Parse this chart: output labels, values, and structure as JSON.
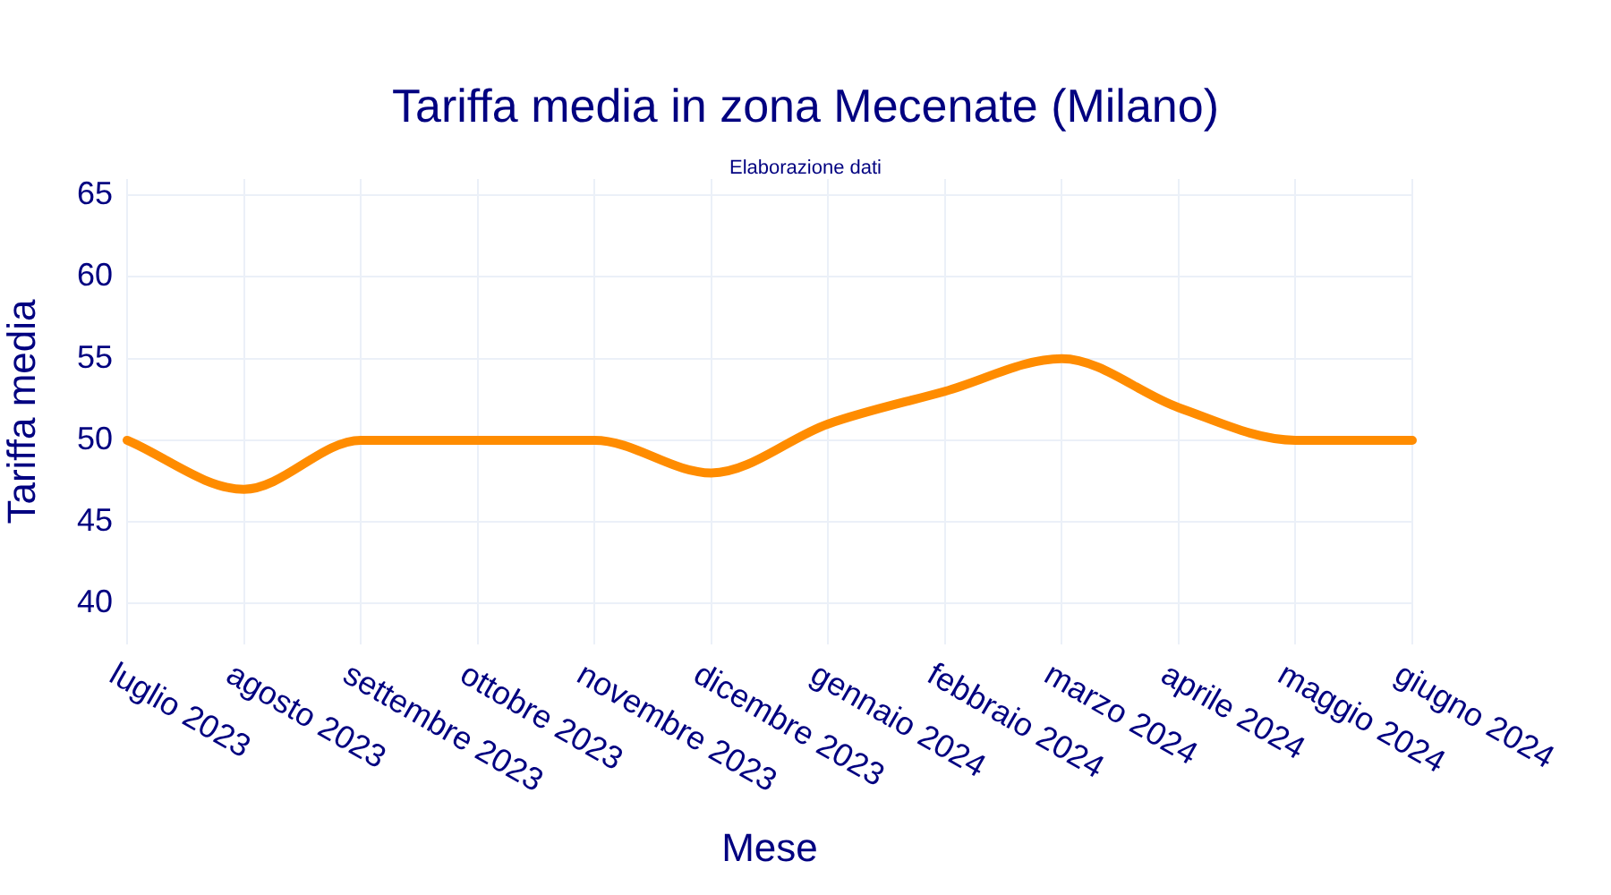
{
  "chart_data": {
    "type": "line",
    "title": "Tariffa media in zona Mecenate (Milano)",
    "subtitle": "Elaborazione dati",
    "xlabel": "Mese",
    "ylabel": "Tariffa media",
    "categories": [
      "luglio 2023",
      "agosto 2023",
      "settembre 2023",
      "ottobre 2023",
      "novembre 2023",
      "dicembre 2023",
      "gennaio 2024",
      "febbraio 2024",
      "marzo 2024",
      "aprile 2024",
      "maggio 2024",
      "giugno 2024"
    ],
    "series": [
      {
        "color": "#ff8c00",
        "values": [
          50,
          47,
          50,
          50,
          50,
          48,
          51,
          53,
          55,
          52,
          50,
          50
        ]
      }
    ],
    "ylim": [
      37.5,
      66
    ],
    "yticks": [
      40,
      45,
      50,
      55,
      60,
      65
    ],
    "grid": true,
    "legend": false,
    "marker": "none"
  }
}
